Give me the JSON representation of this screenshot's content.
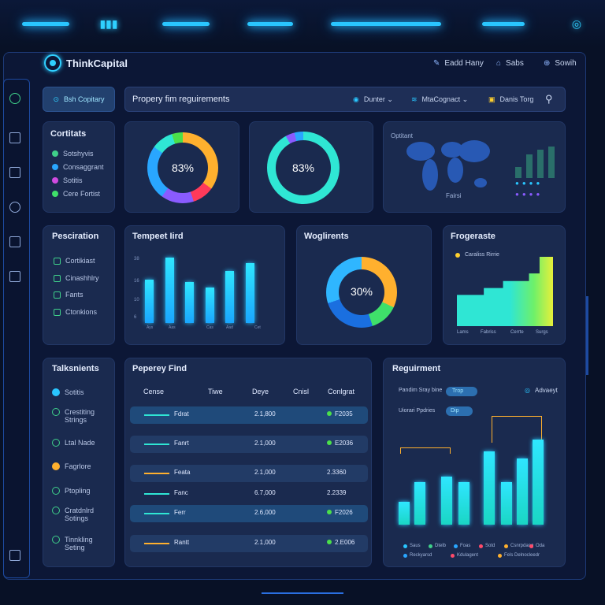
{
  "colors": {
    "accent": "#29c6ff",
    "panel": "#1a2a4f",
    "bg": "#081126",
    "green": "#4be04a",
    "orange": "#ffb02e"
  },
  "brand": {
    "name": "ThinkCapital"
  },
  "header": {
    "links": [
      {
        "icon": "edit-icon",
        "label": "Eadd Hany"
      },
      {
        "icon": "save-icon",
        "label": "Sabs"
      },
      {
        "icon": "search-icon",
        "label": "Sowih"
      }
    ]
  },
  "toolbar": {
    "button_label": "Bsh Copitary",
    "search_title": "Propery fim reguirements",
    "filters": [
      {
        "icon": "user-icon",
        "label": "Dunter"
      },
      {
        "icon": "stack-icon",
        "label": "MtaCognact"
      },
      {
        "icon": "calendar-icon",
        "label": "Danis Torg"
      }
    ]
  },
  "cards": {
    "contents": {
      "title": "Cortitats",
      "items": [
        {
          "label": "Sotshyvis",
          "color": "#3fd08a"
        },
        {
          "label": "Consaggrant",
          "color": "#29a6ff"
        },
        {
          "label": "Sotitis",
          "color": "#d04be0"
        },
        {
          "label": "Cere Fortist",
          "color": "#3fe06a"
        }
      ]
    },
    "donut1": {
      "label": "83%"
    },
    "donut2": {
      "label": "83%"
    },
    "map": {
      "label_top": "Optitant",
      "label_bottom": "Fairsi"
    },
    "presentation": {
      "title": "Pesciration",
      "items": [
        "Cortikiast",
        "Cinashhlry",
        "Fants",
        "Ctonkions"
      ]
    },
    "temperature": {
      "title": "Tempeet Iird",
      "y_ticks": [
        "38",
        "16",
        "10",
        "6"
      ],
      "x_ticks": [
        "Ays",
        "Aas",
        "Cas",
        "Aad",
        "Cet"
      ]
    },
    "weights": {
      "title": "Woglirents",
      "label": "30%"
    },
    "progress": {
      "title": "Frogeraste",
      "legend": "Caraliss Rirrie",
      "x_ticks": [
        "Lams",
        "Fabriss",
        "Cerrte",
        "Surgs"
      ]
    },
    "talks": {
      "title": "Talksnients",
      "items": [
        {
          "label": "Sotitis",
          "kind": "dot",
          "color": "#29c6ff"
        },
        {
          "label": "Crestiting Strings",
          "kind": "ring",
          "color": "#3fd08a"
        },
        {
          "label": "Ltal Nade",
          "kind": "ring",
          "color": "#3fd08a"
        },
        {
          "label": "Fagrlore",
          "kind": "dot",
          "color": "#ffb02e"
        },
        {
          "label": "Ptopling",
          "kind": "ring",
          "color": "#3fd08a"
        },
        {
          "label": "Cratdnlrd Sotings",
          "kind": "ring",
          "color": "#3fd08a"
        },
        {
          "label": "Tinnkling Seting",
          "kind": "ring",
          "color": "#3fd08a"
        }
      ]
    },
    "property": {
      "title": "Peperey Find",
      "columns": [
        "Cense",
        "Tiwe",
        "Deye",
        "Cnisl",
        "Conlgrat"
      ],
      "rows": [
        {
          "time": "Fdrat",
          "val": "2.1,800",
          "status": "F2035",
          "line": "teal",
          "alt": false
        },
        {
          "time": "Fanrt",
          "val": "2.1,000",
          "status": "E2036",
          "line": "teal",
          "alt": true
        },
        {
          "time": "Feata",
          "val": "2.1,000",
          "status": "2.3360",
          "line": "orange",
          "alt": true
        },
        {
          "time": "Fanc",
          "val": "6.7,000",
          "status": "2.2339",
          "line": "teal",
          "alt": false
        },
        {
          "time": "Ferr",
          "val": "2.6,000",
          "status": "F2026",
          "line": "teal",
          "alt": false
        },
        {
          "time": "Rantt",
          "val": "2.1,000",
          "status": "2.E006",
          "line": "orange",
          "alt": true
        }
      ]
    },
    "requirement": {
      "title": "Reguirment",
      "opt1_label": "Pandim Sray bine",
      "opt1_pill": "Trop",
      "opt2_label": "Uiorari Ppdries",
      "opt2_pill": "Dip",
      "adv_label": "Advaeyt",
      "legend": [
        {
          "label": "Saus",
          "color": "#29c6ff"
        },
        {
          "label": "Dtelb",
          "color": "#3fd08a"
        },
        {
          "label": "Foas",
          "color": "#29a6ff"
        },
        {
          "label": "Sotd",
          "color": "#ff4a6a"
        },
        {
          "label": "Csnrpdang",
          "color": "#ffb02e"
        },
        {
          "label": "Oda",
          "color": "#ff4a6a"
        },
        {
          "label": "Reckyarsd",
          "color": "#29a6ff"
        },
        {
          "label": "Kdulagent",
          "color": "#ff4a6a"
        },
        {
          "label": "Fels Delnocleedr",
          "color": "#ffb02e"
        }
      ]
    }
  },
  "chart_data": [
    {
      "type": "bar",
      "title": "Tempeet Iird",
      "categories": [
        "Ays",
        "",
        "Aas",
        "Cas",
        "Aad",
        "Cet"
      ],
      "values": [
        16,
        24,
        15,
        13,
        19,
        22
      ],
      "ylim": [
        0,
        38
      ]
    },
    {
      "type": "bar",
      "title": "Reguirment",
      "categories": [
        "",
        "",
        "",
        "",
        "",
        "",
        "",
        "",
        ""
      ],
      "values": [
        30,
        55,
        62,
        55,
        95,
        55,
        85,
        110,
        0
      ],
      "ylim": [
        0,
        120
      ]
    },
    {
      "type": "area",
      "title": "Frogeraste",
      "categories": [
        "Lams",
        "Fabriss",
        "Cerrte",
        "Surgs"
      ],
      "values": [
        40,
        50,
        60,
        90
      ]
    }
  ]
}
